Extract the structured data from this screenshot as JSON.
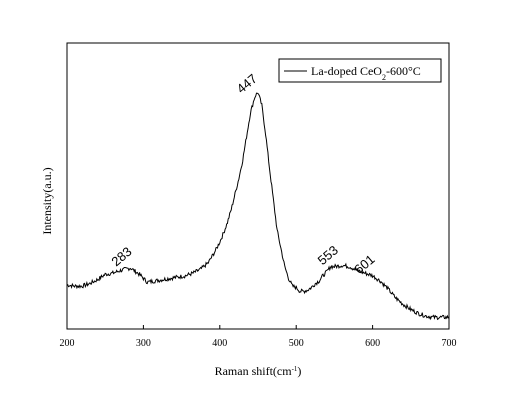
{
  "chart_data": {
    "type": "line",
    "xlabel": "Raman shift(cm",
    "xlabel_sup": "-1",
    "xlabel_tail": ")",
    "ylabel": "Intensity(a.u.)",
    "xlim": [
      200,
      700
    ],
    "xticks": [
      200,
      300,
      400,
      500,
      600,
      700
    ],
    "yticks_shown": false,
    "grid": false,
    "legend_position": "top-right",
    "series": [
      {
        "name": "La-doped CeO",
        "name_sub": "2",
        "name_tail": "-600°C",
        "color": "#000000",
        "x": [
          200,
          210,
          220,
          230,
          240,
          250,
          260,
          270,
          283,
          295,
          305,
          315,
          325,
          335,
          345,
          355,
          365,
          375,
          385,
          395,
          400,
          405,
          410,
          415,
          420,
          425,
          430,
          435,
          440,
          445,
          447,
          450,
          455,
          460,
          465,
          470,
          475,
          480,
          485,
          490,
          495,
          500,
          505,
          510,
          515,
          520,
          525,
          530,
          535,
          540,
          545,
          550,
          560,
          570,
          580,
          590,
          600,
          610,
          620,
          630,
          640,
          650,
          660,
          670,
          680,
          690,
          700
        ],
        "y": [
          17.0,
          16.5,
          16.5,
          17.5,
          19.0,
          21.0,
          21.5,
          22.5,
          23.5,
          21.0,
          18.0,
          18.5,
          19.0,
          19.5,
          20.0,
          20.5,
          21.5,
          23.0,
          25.5,
          30.5,
          33.5,
          37.0,
          41.0,
          46.0,
          52.0,
          58.0,
          65.0,
          74.0,
          83.0,
          88.5,
          90.0,
          91.0,
          86.0,
          75.0,
          62.0,
          50.0,
          38.0,
          31.0,
          24.0,
          19.5,
          16.5,
          16.0,
          14.5,
          14.5,
          15.0,
          16.0,
          17.5,
          18.5,
          20.5,
          22.0,
          24.0,
          24.0,
          24.5,
          24.0,
          22.5,
          21.5,
          20.5,
          18.5,
          15.5,
          12.0,
          9.5,
          7.5,
          6.0,
          5.0,
          4.5,
          4.5,
          4.5
        ],
        "ylim": [
          0,
          110
        ]
      }
    ],
    "annotations": [
      {
        "text": "283",
        "x": 283,
        "y": 23.5
      },
      {
        "text": "447",
        "x": 447,
        "y": 90.0
      },
      {
        "text": "553",
        "x": 553,
        "y": 24.0
      },
      {
        "text": "601",
        "x": 601,
        "y": 20.5
      }
    ]
  }
}
